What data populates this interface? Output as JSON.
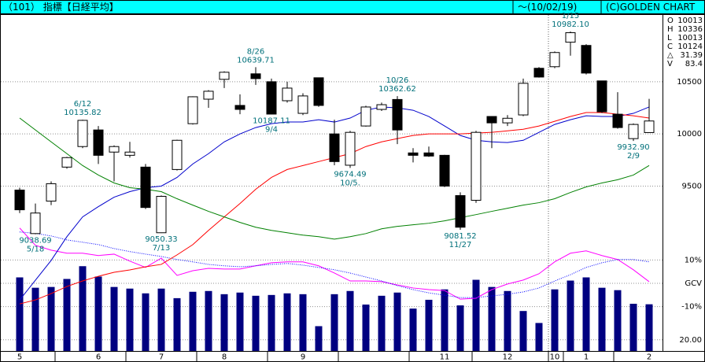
{
  "header": {
    "title": "（101） 指標【日経平均】",
    "period": "〜(10/02/19)",
    "copyright": "(C)GOLDEN CHART"
  },
  "chart_data": [
    {
      "type": "candlestick",
      "categories": [
        "5",
        null,
        null,
        null,
        null,
        "6",
        null,
        null,
        null,
        "7",
        null,
        null,
        null,
        "8",
        null,
        null,
        null,
        null,
        "9",
        null,
        null,
        null,
        null,
        null,
        null,
        null,
        null,
        "11",
        null,
        null,
        null,
        "12",
        null,
        null,
        "10",
        null,
        "1",
        null,
        null,
        null,
        "2"
      ],
      "open": [
        9462,
        9045,
        9356,
        9682,
        9879,
        10038,
        9826,
        9795,
        9682,
        9053,
        9659,
        10098,
        10333,
        10523,
        10273,
        10576,
        10500,
        10318,
        10197,
        10538,
        10000,
        9700,
        10076,
        10235,
        10330,
        9818,
        9818,
        9795,
        9409,
        9364,
        10167,
        10106,
        10182,
        10629,
        10644,
        10879,
        10848,
        10508,
        10189,
        9955,
        10013
      ],
      "high": [
        9485,
        9333,
        9545,
        9780,
        10135.82,
        10076,
        9890,
        9924,
        9712,
        9410,
        9945,
        10360,
        10420,
        10600,
        10379,
        10639.71,
        10530,
        10500,
        10390,
        10540,
        10136,
        10030,
        10270,
        10300,
        10362.62,
        9864,
        9879,
        9800,
        9440,
        10030,
        10170,
        10180,
        10530,
        10640,
        10790,
        10982.1,
        10860,
        10510,
        10400,
        10100,
        10336
      ],
      "low": [
        9242,
        9038.69,
        9318,
        9667,
        9864,
        9712,
        9545,
        9773,
        9280,
        9050.33,
        9650,
        10090,
        10250,
        10440,
        10189,
        10470,
        10187.11,
        10300,
        10180,
        10260,
        9700,
        9674.49,
        10070,
        10220,
        9902,
        9727,
        9780,
        9490,
        9081.52,
        9340,
        9864,
        10076,
        10170,
        10540,
        10630,
        10750,
        10570,
        10200,
        10050,
        9932.9,
        10013
      ],
      "close": [
        9273,
        9242,
        9523,
        9773,
        10130,
        9795,
        9879,
        9826,
        9295,
        9402,
        9939,
        10356,
        10409,
        10591,
        10235,
        10530,
        10190,
        10439,
        10364,
        10273,
        9735,
        10015,
        10258,
        10280,
        10038,
        9795,
        9788,
        9500,
        9106,
        10015,
        10106,
        10150,
        10485,
        10545,
        10780,
        10970,
        10583,
        10212,
        10061,
        10091,
        10124
      ],
      "up_color": "#ffffff",
      "down_color": "#000000",
      "series": [
        {
          "color": "#0000cc",
          "values": [
            8409,
            8598,
            8788,
            9015,
            9205,
            9303,
            9394,
            9447,
            9485,
            9500,
            9583,
            9712,
            9811,
            9924,
            10000,
            10061,
            10098,
            10114,
            10114,
            10136,
            10114,
            10152,
            10227,
            10258,
            10250,
            10227,
            10167,
            10076,
            9985,
            9939,
            9924,
            9917,
            9939,
            10015,
            10091,
            10136,
            10174,
            10167,
            10167,
            10197,
            10258
          ]
        },
        {
          "color": "#ff0000",
          "values": [
            8371,
            8409,
            8470,
            8538,
            8591,
            8636,
            8674,
            8697,
            8727,
            8750,
            8841,
            8939,
            9076,
            9205,
            9333,
            9470,
            9583,
            9659,
            9697,
            9735,
            9773,
            9811,
            9879,
            9924,
            9955,
            9985,
            10000,
            10000,
            10000,
            10008,
            10015,
            10030,
            10045,
            10076,
            10121,
            10167,
            10205,
            10205,
            10189,
            10174,
            10152
          ]
        },
        {
          "color": "#008000",
          "values": [
            10152,
            10038,
            9924,
            9811,
            9697,
            9606,
            9530,
            9485,
            9470,
            9447,
            9379,
            9318,
            9258,
            9205,
            9152,
            9106,
            9076,
            9053,
            9030,
            9015,
            8992,
            9015,
            9045,
            9091,
            9114,
            9129,
            9144,
            9167,
            9197,
            9227,
            9258,
            9288,
            9318,
            9341,
            9379,
            9439,
            9492,
            9530,
            9561,
            9606,
            9697
          ]
        }
      ],
      "ylim": [
        7920,
        11140
      ],
      "yticks": [
        10500,
        10000,
        9500
      ],
      "grid": true,
      "annotations": [
        {
          "date": "5/18",
          "value": 9038.69
        },
        {
          "date": "6/12",
          "value": 10135.82
        },
        {
          "date": "7/13",
          "value": 9050.33
        },
        {
          "date": "8/26",
          "value": 10639.71
        },
        {
          "date": "9/4",
          "value": 10187.11
        },
        {
          "date": "10/5.",
          "value": 9674.49
        },
        {
          "date": "10/26",
          "value": 10362.62
        },
        {
          "date": "11/27",
          "value": 9081.52
        },
        {
          "date": "1/15",
          "value": 10982.1,
          "label": "10982.10"
        },
        {
          "date": "2/9",
          "value": 9932.9,
          "label": "9932.90"
        }
      ],
      "info": [
        {
          "label": "O",
          "value": 10013
        },
        {
          "label": "H",
          "value": 10336
        },
        {
          "label": "L",
          "value": 10013
        },
        {
          "label": "C",
          "value": 10124
        },
        {
          "label": "△",
          "value": 31.39
        },
        {
          "label": "V",
          "value": 83.4
        }
      ]
    },
    {
      "type": "bar",
      "color": "#000080",
      "values": [
        131.4,
        112.9,
        114.3,
        128.6,
        151.4,
        132.9,
        114.3,
        111.4,
        102.9,
        111.4,
        94.3,
        105.7,
        107.1,
        101.4,
        104.3,
        98.6,
        100,
        102.9,
        101.4,
        44.3,
        101.4,
        107.1,
        82.9,
        98.6,
        104.3,
        75.7,
        91.4,
        110,
        81.4,
        127.1,
        114.3,
        107.1,
        71.4,
        50,
        110,
        125.7,
        131.4,
        112.9,
        108.6,
        84.3,
        83.4
      ],
      "ylim": [
        0,
        600
      ],
      "yticks": [
        {
          "value": 20,
          "label": "20.00"
        }
      ],
      "grid": true
    },
    {
      "type": "line",
      "series": [
        {
          "color": "#ff00ff",
          "line_style": "solid",
          "values": [
            23.7,
            16.3,
            14.2,
            12.9,
            12.9,
            11.9,
            12.5,
            9.5,
            6.8,
            10.8,
            3.4,
            5.4,
            6.4,
            6.1,
            6.1,
            7.5,
            8.8,
            9.2,
            9.2,
            7.5,
            4.4,
            1.0,
            1.0,
            0.7,
            -0.7,
            -2.0,
            -2.7,
            -3.1,
            -6.8,
            -6.4,
            -2.7,
            -0.3,
            1.4,
            4.1,
            9.2,
            12.9,
            13.9,
            11.9,
            10.2,
            5.8,
            0.7
          ]
        },
        {
          "color": "#0000ff",
          "line_style": "dotted",
          "values": [
            22,
            21.4,
            20.3,
            18.6,
            17.6,
            16.6,
            14.9,
            13.6,
            12.5,
            11.5,
            10.2,
            9.2,
            8.1,
            7.5,
            7.1,
            7.5,
            8.1,
            8.5,
            7.8,
            6.8,
            5.8,
            4.4,
            2.7,
            1.0,
            -1.0,
            -2.7,
            -4.1,
            -5.1,
            -6.1,
            -6.1,
            -5.4,
            -4.7,
            -3.7,
            -2.0,
            1.0,
            3.7,
            6.8,
            8.8,
            10.2,
            10.2,
            9.2
          ]
        }
      ],
      "ylim": [
        -29,
        115
      ],
      "yticks": [
        {
          "value": 10,
          "label": "10%"
        },
        {
          "value": 0,
          "label": "GCV"
        },
        {
          "value": -10,
          "label": "-10%"
        }
      ],
      "grid": true
    }
  ]
}
